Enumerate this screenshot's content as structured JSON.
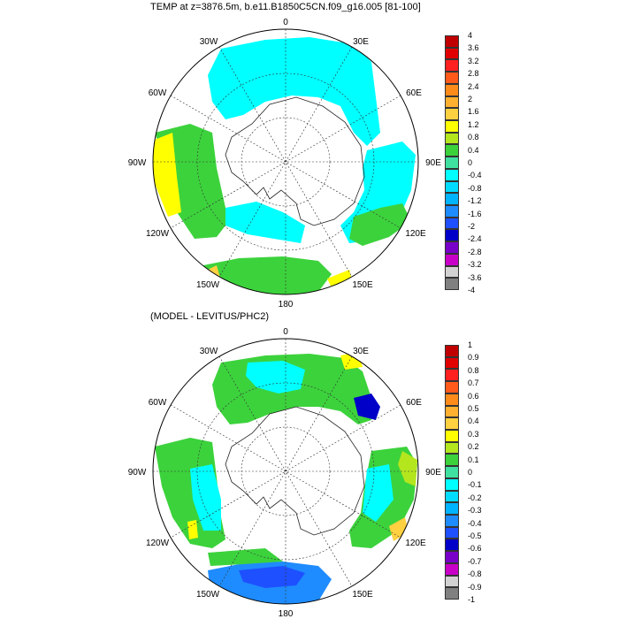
{
  "panels": [
    {
      "title": "TEMP at z=3876.5m, b.e11.B1850C5CN.f09_g16.005 [81-100]",
      "lon_labels": {
        "n0": "0",
        "e30": "30E",
        "e60": "60E",
        "e90": "90E",
        "e120": "120E",
        "e150": "150E",
        "s180": "180",
        "w150": "150W",
        "w120": "120W",
        "w90": "90W",
        "w60": "60W",
        "w30": "30W"
      },
      "colorbar": {
        "labels": [
          "4",
          "3.6",
          "3.2",
          "2.8",
          "2.4",
          "2",
          "1.6",
          "1.2",
          "0.8",
          "0.4",
          "0",
          "-0.4",
          "-0.8",
          "-1.2",
          "-1.6",
          "-2",
          "-2.4",
          "-2.8",
          "-3.2",
          "-3.6",
          "-4"
        ],
        "colors": [
          "#c00000",
          "#e00000",
          "#ff2020",
          "#ff5a1a",
          "#ff8c1a",
          "#ffb030",
          "#ffd040",
          "#ffff00",
          "#b4e61e",
          "#3cd23c",
          "#40e0a0",
          "#00ffff",
          "#00dcff",
          "#00b4ff",
          "#1e8cff",
          "#1e50ff",
          "#0000c8",
          "#7800c8",
          "#c800c8",
          "#d2d2d2",
          "#808080"
        ]
      }
    },
    {
      "title": "(MODEL - LEVITUS/PHC2)",
      "lon_labels": {
        "n0": "0",
        "e30": "30E",
        "e60": "60E",
        "e90": "90E",
        "e120": "120E",
        "e150": "150E",
        "s180": "180",
        "w150": "150W",
        "w120": "120W",
        "w90": "90W",
        "w60": "60W",
        "w30": "30W"
      },
      "colorbar": {
        "labels": [
          "1",
          "0.9",
          "0.8",
          "0.7",
          "0.6",
          "0.5",
          "0.4",
          "0.3",
          "0.2",
          "0.1",
          "0",
          "-0.1",
          "-0.2",
          "-0.3",
          "-0.4",
          "-0.5",
          "-0.6",
          "-0.7",
          "-0.8",
          "-0.9",
          "-1"
        ],
        "colors": [
          "#c00000",
          "#e00000",
          "#ff2020",
          "#ff5a1a",
          "#ff8c1a",
          "#ffb030",
          "#ffd040",
          "#ffff00",
          "#b4e61e",
          "#3cd23c",
          "#40e0a0",
          "#00ffff",
          "#00dcff",
          "#00b4ff",
          "#1e8cff",
          "#1e50ff",
          "#0000c8",
          "#7800c8",
          "#c800c8",
          "#d2d2d2",
          "#808080"
        ]
      }
    }
  ],
  "fill_colors": {
    "cyan": "#00ffff",
    "green": "#3cd23c",
    "yellow": "#ffff00",
    "lightgreen": "#b4e61e",
    "orange": "#ffd040",
    "blue": "#1e50ff",
    "darkblue": "#0000c8",
    "skyblue": "#1e8cff",
    "aqua": "#40e0a0"
  }
}
